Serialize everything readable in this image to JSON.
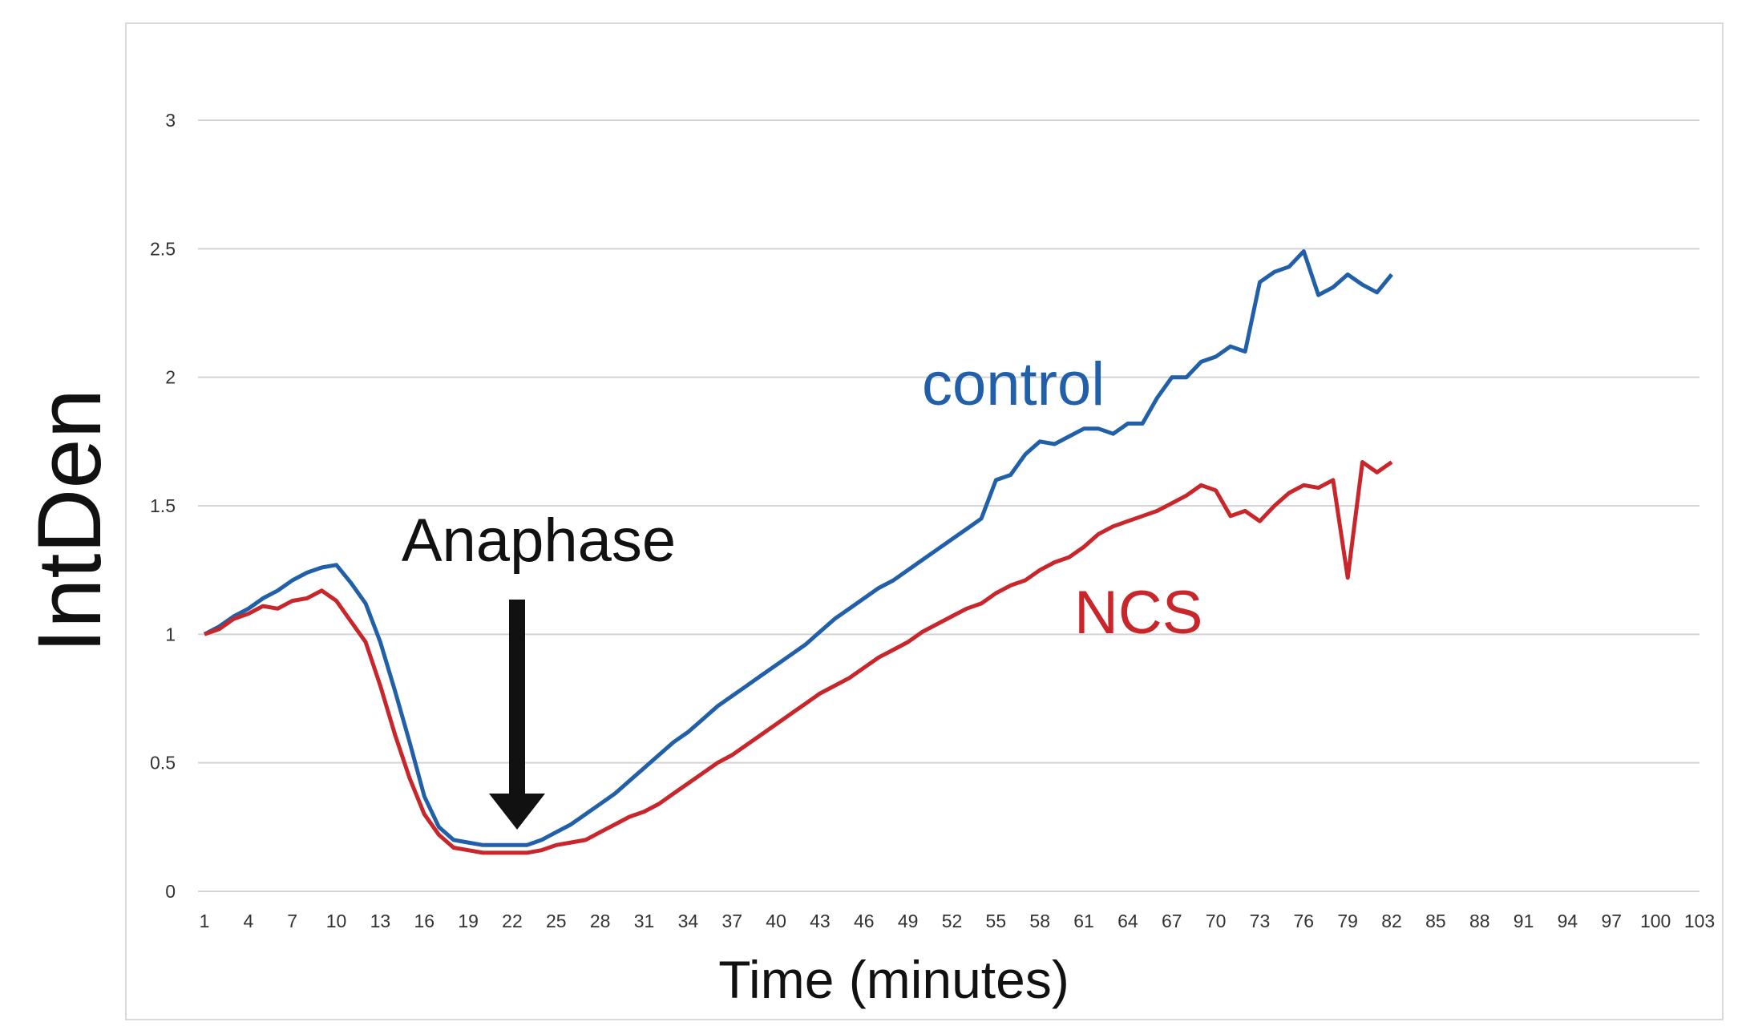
{
  "chart_data": {
    "type": "line",
    "xlabel": "Time (minutes)",
    "ylabel": "IntDen",
    "ylim": [
      0,
      3
    ],
    "yticks": [
      "0",
      "0.5",
      "1",
      "1.5",
      "2",
      "2.5",
      "3"
    ],
    "ytick_values": [
      0,
      0.5,
      1,
      1.5,
      2,
      2.5,
      3
    ],
    "xlim": [
      1,
      103
    ],
    "xticks": [
      "1",
      "4",
      "7",
      "10",
      "13",
      "16",
      "19",
      "22",
      "25",
      "28",
      "31",
      "34",
      "37",
      "40",
      "43",
      "46",
      "49",
      "52",
      "55",
      "58",
      "61",
      "64",
      "67",
      "70",
      "73",
      "76",
      "79",
      "82",
      "85",
      "88",
      "91",
      "94",
      "97",
      "100",
      "103"
    ],
    "grid": true,
    "legend": "none",
    "annotations": [
      {
        "text": "Anaphase",
        "x": 22,
        "arrow_to_y": 0.25
      },
      {
        "text": "control",
        "series": "control"
      },
      {
        "text": "NCS",
        "series": "NCS"
      }
    ],
    "series": [
      {
        "name": "control",
        "color": "#2160a8",
        "x": [
          1,
          2,
          3,
          4,
          5,
          6,
          7,
          8,
          9,
          10,
          11,
          12,
          13,
          14,
          15,
          16,
          17,
          18,
          19,
          20,
          21,
          22,
          23,
          24,
          25,
          26,
          27,
          28,
          29,
          30,
          31,
          32,
          33,
          34,
          35,
          36,
          37,
          38,
          39,
          40,
          41,
          42,
          43,
          44,
          45,
          46,
          47,
          48,
          49,
          50,
          51,
          52,
          53,
          54,
          55,
          56,
          57,
          58,
          59,
          60,
          61,
          62,
          63,
          64,
          65,
          66,
          67,
          68,
          69,
          70,
          71,
          72,
          73,
          74,
          75,
          76,
          77,
          78,
          79,
          80,
          81,
          82
        ],
        "y": [
          1.0,
          1.03,
          1.07,
          1.1,
          1.14,
          1.17,
          1.21,
          1.24,
          1.26,
          1.27,
          1.2,
          1.12,
          0.97,
          0.78,
          0.58,
          0.37,
          0.25,
          0.2,
          0.19,
          0.18,
          0.18,
          0.18,
          0.18,
          0.2,
          0.23,
          0.26,
          0.3,
          0.34,
          0.38,
          0.43,
          0.48,
          0.53,
          0.58,
          0.62,
          0.67,
          0.72,
          0.76,
          0.8,
          0.84,
          0.88,
          0.92,
          0.96,
          1.01,
          1.06,
          1.1,
          1.14,
          1.18,
          1.21,
          1.25,
          1.29,
          1.33,
          1.37,
          1.41,
          1.45,
          1.6,
          1.62,
          1.7,
          1.75,
          1.74,
          1.77,
          1.8,
          1.8,
          1.78,
          1.82,
          1.82,
          1.92,
          2.0,
          2.0,
          2.06,
          2.08,
          2.12,
          2.1,
          2.37,
          2.41,
          2.43,
          2.49,
          2.32,
          2.35,
          2.4,
          2.36,
          2.33,
          2.4
        ]
      },
      {
        "name": "NCS",
        "color": "#c8262b",
        "x": [
          1,
          2,
          3,
          4,
          5,
          6,
          7,
          8,
          9,
          10,
          11,
          12,
          13,
          14,
          15,
          16,
          17,
          18,
          19,
          20,
          21,
          22,
          23,
          24,
          25,
          26,
          27,
          28,
          29,
          30,
          31,
          32,
          33,
          34,
          35,
          36,
          37,
          38,
          39,
          40,
          41,
          42,
          43,
          44,
          45,
          46,
          47,
          48,
          49,
          50,
          51,
          52,
          53,
          54,
          55,
          56,
          57,
          58,
          59,
          60,
          61,
          62,
          63,
          64,
          65,
          66,
          67,
          68,
          69,
          70,
          71,
          72,
          73,
          74,
          75,
          76,
          77,
          78,
          79,
          80,
          81,
          82
        ],
        "y": [
          1.0,
          1.02,
          1.06,
          1.08,
          1.11,
          1.1,
          1.13,
          1.14,
          1.17,
          1.13,
          1.05,
          0.97,
          0.8,
          0.61,
          0.44,
          0.3,
          0.22,
          0.17,
          0.16,
          0.15,
          0.15,
          0.15,
          0.15,
          0.16,
          0.18,
          0.19,
          0.2,
          0.23,
          0.26,
          0.29,
          0.31,
          0.34,
          0.38,
          0.42,
          0.46,
          0.5,
          0.53,
          0.57,
          0.61,
          0.65,
          0.69,
          0.73,
          0.77,
          0.8,
          0.83,
          0.87,
          0.91,
          0.94,
          0.97,
          1.01,
          1.04,
          1.07,
          1.1,
          1.12,
          1.16,
          1.19,
          1.21,
          1.25,
          1.28,
          1.3,
          1.34,
          1.39,
          1.42,
          1.44,
          1.46,
          1.48,
          1.51,
          1.54,
          1.58,
          1.56,
          1.46,
          1.48,
          1.44,
          1.5,
          1.55,
          1.58,
          1.57,
          1.6,
          1.22,
          1.67,
          1.63,
          1.67
        ]
      }
    ]
  }
}
